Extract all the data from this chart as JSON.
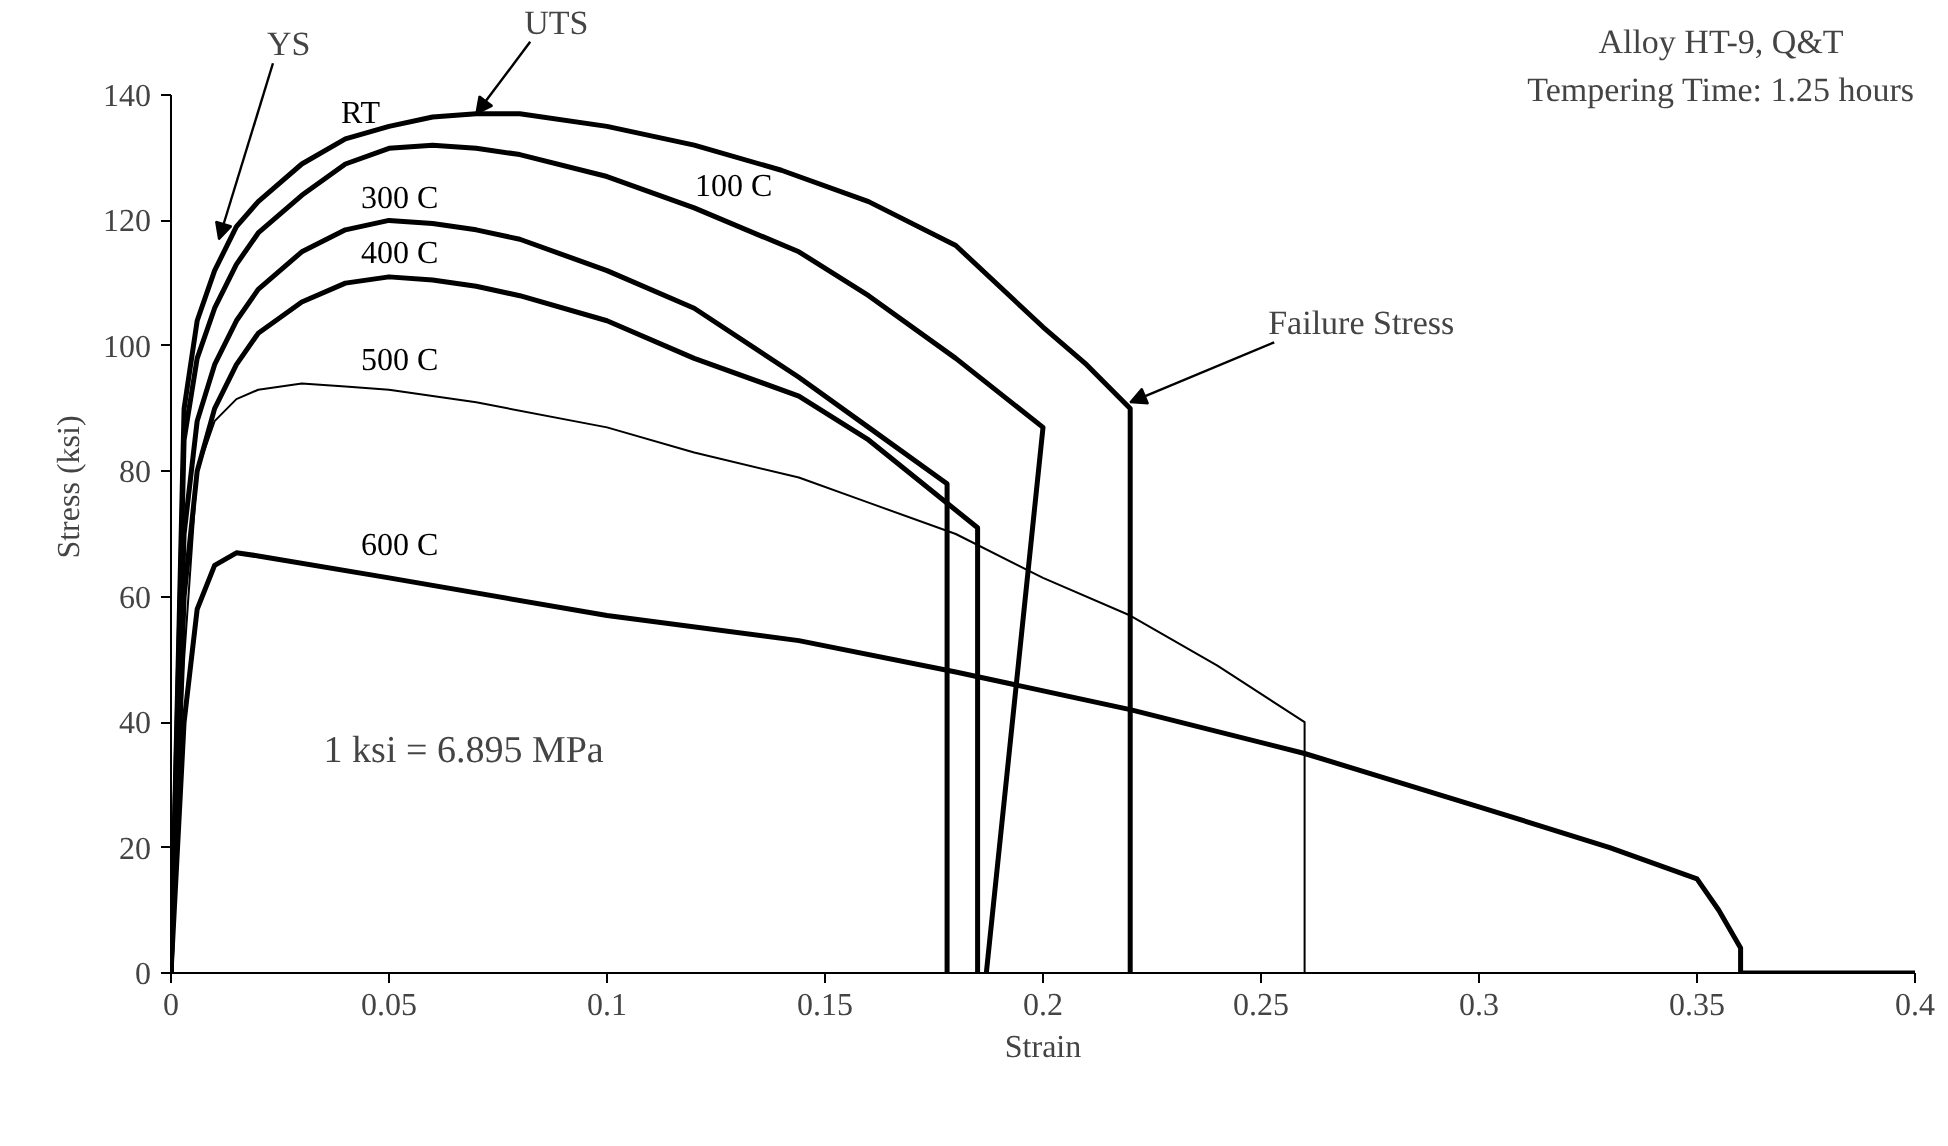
{
  "chart_data": {
    "type": "line",
    "title": "Alloy HT-9, Q&T",
    "subtitle": "Tempering Time: 1.25 hours",
    "xlabel": "Strain",
    "ylabel": "Stress (ksi)",
    "xlim": [
      0,
      0.4
    ],
    "ylim": [
      0,
      140
    ],
    "xticks": [
      0,
      0.05,
      0.1,
      0.15,
      0.2,
      0.25,
      0.3,
      0.35,
      0.4
    ],
    "yticks": [
      0,
      20,
      40,
      60,
      80,
      100,
      120,
      140
    ],
    "grid": false,
    "legend": false,
    "marker": "none",
    "line_style": "solid",
    "annotations": [
      {
        "text": "YS",
        "x": 0.011,
        "y": 117
      },
      {
        "text": "UTS",
        "x": 0.07,
        "y": 137
      },
      {
        "text": "Failure Stress",
        "x": 0.22,
        "y": 91
      },
      "1 ksi = 6.895 MPa"
    ],
    "series": [
      {
        "name": "RT",
        "color": "#000000",
        "x": [
          0,
          0.003,
          0.006,
          0.01,
          0.015,
          0.02,
          0.03,
          0.04,
          0.05,
          0.06,
          0.07,
          0.08,
          0.1,
          0.12,
          0.14,
          0.16,
          0.18,
          0.2,
          0.21,
          0.22,
          0.22
        ],
        "values": [
          0,
          90,
          104,
          112,
          119,
          123,
          129,
          133,
          135,
          136.5,
          137,
          137,
          135,
          132,
          128,
          123,
          116,
          103,
          97,
          90,
          0
        ]
      },
      {
        "name": "100 C",
        "color": "#000000",
        "x": [
          0,
          0.003,
          0.006,
          0.01,
          0.015,
          0.02,
          0.03,
          0.04,
          0.05,
          0.06,
          0.07,
          0.08,
          0.1,
          0.12,
          0.144,
          0.16,
          0.18,
          0.2,
          0.187
        ],
        "values": [
          0,
          85,
          98,
          106,
          113,
          118,
          124,
          129,
          131.5,
          132,
          131.5,
          130.5,
          127,
          122,
          115,
          108,
          98,
          87,
          0
        ]
      },
      {
        "name": "300 C",
        "color": "#000000",
        "x": [
          0,
          0.003,
          0.006,
          0.01,
          0.015,
          0.02,
          0.03,
          0.04,
          0.05,
          0.06,
          0.07,
          0.08,
          0.1,
          0.12,
          0.144,
          0.16,
          0.178,
          0.178
        ],
        "values": [
          0,
          70,
          88,
          97,
          104,
          109,
          115,
          118.5,
          120,
          119.5,
          118.5,
          117,
          112,
          106,
          95,
          87,
          78,
          0
        ]
      },
      {
        "name": "400 C",
        "color": "#000000",
        "x": [
          0,
          0.003,
          0.006,
          0.01,
          0.015,
          0.02,
          0.03,
          0.04,
          0.05,
          0.06,
          0.07,
          0.08,
          0.1,
          0.12,
          0.144,
          0.16,
          0.185,
          0.185
        ],
        "values": [
          0,
          60,
          80,
          90,
          97,
          102,
          107,
          110,
          111,
          110.5,
          109.5,
          108,
          104,
          98,
          92,
          85,
          71,
          0
        ]
      },
      {
        "name": "500 C",
        "color": "#000000",
        "x": [
          0,
          0.003,
          0.006,
          0.01,
          0.015,
          0.02,
          0.03,
          0.04,
          0.05,
          0.07,
          0.1,
          0.12,
          0.144,
          0.16,
          0.18,
          0.2,
          0.22,
          0.24,
          0.26,
          0.26
        ],
        "values": [
          0,
          50,
          80,
          88,
          91.5,
          93,
          94,
          93.5,
          93,
          91,
          87,
          83,
          79,
          75,
          70,
          63,
          57,
          49,
          40,
          0
        ]
      },
      {
        "name": "600 C",
        "color": "#000000",
        "x": [
          0,
          0.003,
          0.006,
          0.01,
          0.015,
          0.02,
          0.05,
          0.1,
          0.144,
          0.18,
          0.22,
          0.26,
          0.3,
          0.33,
          0.35,
          0.355,
          0.36,
          0.36,
          0.4
        ],
        "values": [
          0,
          40,
          58,
          65,
          67,
          66.5,
          63,
          57,
          53,
          48,
          42,
          35,
          26.5,
          20,
          15,
          10,
          4,
          0,
          0
        ]
      }
    ]
  }
}
